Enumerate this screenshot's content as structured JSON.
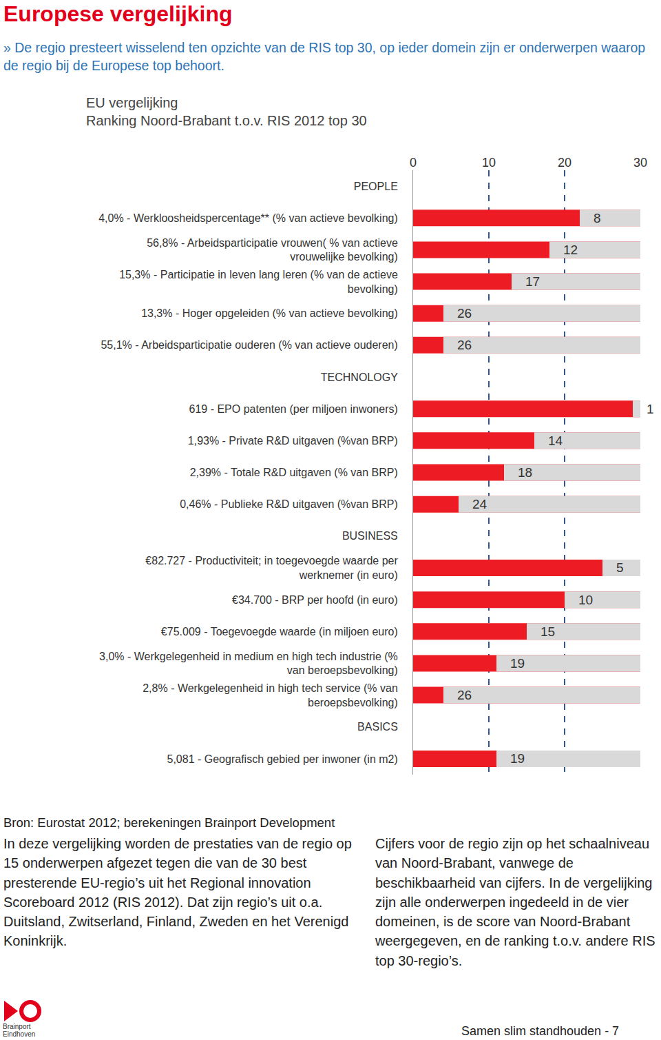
{
  "page": {
    "heading": "Europese vergelijking",
    "intro": "» De regio presteert wisselend ten opzichte van de RIS top 30, op ieder domein zijn er onderwerpen waarop de regio bij de Europese top behoort.",
    "source": "Bron: Eurostat 2012; berekeningen Brainport Development",
    "notes": [
      "In deze vergelijking worden de prestaties van de regio op 15 onderwerpen afgezet tegen die van de 30 best presterende EU-regio’s uit het Regional innovation Scoreboard 2012 (RIS 2012). Dat zijn regio’s uit o.a. Duitsland, Zwitserland, Finland, Zweden en het Verenigd Koninkrijk.",
      "Cijfers voor de regio zijn op het schaalniveau van Noord-Brabant, vanwege de beschikbaarheid van cijfers. In de vergelijking zijn alle onderwerpen ingedeeld in de vier domeinen, is de score van Noord-Brabant weergegeven, en de ranking t.o.v. andere RIS top 30-regio’s."
    ],
    "logo": [
      "Brainport",
      "Eindhoven"
    ],
    "footer": "Samen slim standhouden - 7"
  },
  "chart_data": {
    "type": "bar",
    "orientation": "horizontal",
    "title": "EU vergelijking\nRanking Noord-Brabant t.o.v. RIS 2012 top 30",
    "categories": [
      "PEOPLE",
      "4,0% - Werkloosheidspercentage** (% van actieve bevolking)",
      "56,8% - Arbeidsparticipatie vrouwen( % van actieve\nvrouwelijke bevolking)",
      "15,3% - Participatie in leven lang leren (% van de actieve\nbevolking)",
      "13,3% - Hoger opgeleiden (% van actieve bevolking)",
      "55,1% - Arbeidsparticipatie ouderen (% van actieve ouderen)",
      "TECHNOLOGY",
      "619 - EPO patenten (per miljoen inwoners)",
      "1,93% - Private R&D uitgaven (%van BRP)",
      "2,39% - Totale R&D uitgaven (% van BRP)",
      "0,46% - Publieke R&D uitgaven (%van BRP)",
      "BUSINESS",
      "€82.727 - Productiviteit; in toegevoegde waarde per\nwerknemer (in euro)",
      "€34.700 - BRP per hoofd (in euro)",
      "€75.009 - Toegevoegde waarde (in miljoen euro)",
      "3,0% - Werkgelegenheid in medium en high tech industrie (%\nvan beroepsbevolking)",
      "2,8% - Werkgelegenheid in high tech service (% van\nberoepsbevolking)",
      "BASICS",
      "5,081 - Geografisch gebied per inwoner (in m2)"
    ],
    "values": [
      null,
      8,
      12,
      17,
      26,
      26,
      null,
      1,
      14,
      18,
      24,
      null,
      5,
      10,
      15,
      19,
      26,
      null,
      19
    ],
    "color": "#ed1c24",
    "xlim": [
      0,
      30
    ],
    "xticks": [
      0,
      10,
      20,
      30
    ],
    "grid": true,
    "data_labels": true
  }
}
